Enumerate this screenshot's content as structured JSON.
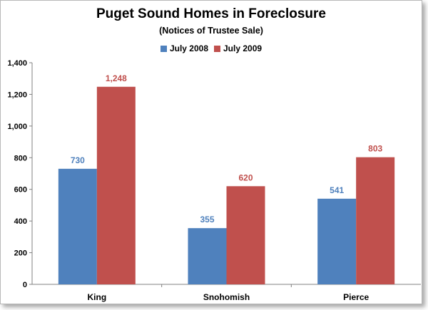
{
  "chart_data": {
    "type": "bar",
    "title": "Puget Sound Homes in Foreclosure",
    "subtitle": "(Notices of Trustee Sale)",
    "categories": [
      "King",
      "Snohomish",
      "Pierce"
    ],
    "series": [
      {
        "name": "July 2008",
        "values": [
          730,
          355,
          541
        ],
        "color": "#4f81bd"
      },
      {
        "name": "July 2009",
        "values": [
          1248,
          620,
          803
        ],
        "color": "#c0504d"
      }
    ],
    "data_labels": [
      [
        "730",
        "355",
        "541"
      ],
      [
        "1,248",
        "620",
        "803"
      ]
    ],
    "ylim": [
      0,
      1400
    ],
    "yticks": [
      0,
      200,
      400,
      600,
      800,
      1000,
      1200,
      1400
    ],
    "ytick_labels": [
      "0",
      "200",
      "400",
      "600",
      "800",
      "1,000",
      "1,200",
      "1,400"
    ],
    "legend_position": "top",
    "grid": false
  }
}
